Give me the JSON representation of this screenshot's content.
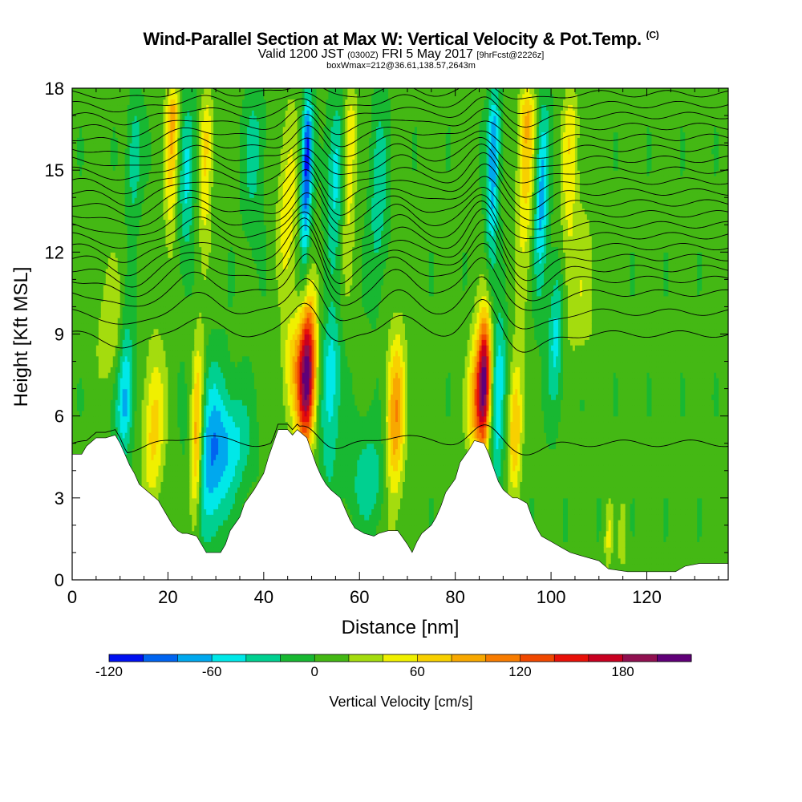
{
  "header": {
    "title": "Wind-Parallel Section at Max W: Vertical Velocity & Pot.Temp.",
    "title_tag": "(C)",
    "valid_prefix": "Valid 1200 JST",
    "valid_utc": "(0300Z)",
    "valid_date": "FRI 5 May 2017",
    "forecast": "[9hrFcst@2226z]",
    "box_info": "boxWmax=212@36.61,138.57,2643m"
  },
  "chart_data": {
    "type": "heatmap",
    "xlabel": "Distance [nm]",
    "ylabel": "Height [Kft MSL]",
    "xlim": [
      0,
      137
    ],
    "ylim": [
      0,
      18
    ],
    "x_ticks": [
      0,
      20,
      40,
      60,
      80,
      100,
      120
    ],
    "y_ticks": [
      0,
      3,
      6,
      9,
      12,
      15,
      18
    ],
    "colorbar": {
      "title": "Vertical Velocity [cm/s]",
      "range": [
        -120,
        220
      ],
      "step": 20,
      "tick_labels": [
        "-120",
        "-60",
        "0",
        "60",
        "120",
        "180"
      ],
      "tick_values": [
        -120,
        -60,
        0,
        60,
        120,
        180
      ],
      "colors": [
        "#0010f0",
        "#0064f0",
        "#00a8ee",
        "#00e8e8",
        "#00d090",
        "#18b832",
        "#44b814",
        "#a4dc0e",
        "#f0f000",
        "#f8d000",
        "#f8a800",
        "#f87c00",
        "#f04800",
        "#e81008",
        "#c80020",
        "#901050",
        "#600078"
      ]
    },
    "background_w": 5,
    "terrain": [
      [
        0,
        4.6
      ],
      [
        2,
        4.6
      ],
      [
        3,
        4.9
      ],
      [
        5,
        5.2
      ],
      [
        7,
        5.2
      ],
      [
        9,
        5.3
      ],
      [
        10,
        5.0
      ],
      [
        11,
        4.6
      ],
      [
        12,
        4.2
      ],
      [
        13,
        3.9
      ],
      [
        14,
        3.5
      ],
      [
        16,
        3.2
      ],
      [
        18,
        2.9
      ],
      [
        19,
        2.6
      ],
      [
        20,
        2.3
      ],
      [
        21,
        2.0
      ],
      [
        22,
        1.8
      ],
      [
        23,
        1.7
      ],
      [
        24,
        1.7
      ],
      [
        26,
        1.6
      ],
      [
        27,
        1.3
      ],
      [
        28,
        1.0
      ],
      [
        31,
        1.0
      ],
      [
        32,
        1.3
      ],
      [
        33,
        1.8
      ],
      [
        35,
        2.3
      ],
      [
        36,
        2.8
      ],
      [
        38,
        3.3
      ],
      [
        40,
        3.9
      ],
      [
        41,
        4.5
      ],
      [
        42,
        5.0
      ],
      [
        43,
        5.5
      ],
      [
        45,
        5.5
      ],
      [
        46,
        5.3
      ],
      [
        47,
        5.5
      ],
      [
        49,
        5.2
      ],
      [
        50,
        4.7
      ],
      [
        51,
        4.2
      ],
      [
        52,
        3.8
      ],
      [
        53,
        3.5
      ],
      [
        54,
        3.3
      ],
      [
        56,
        3.0
      ],
      [
        57,
        2.6
      ],
      [
        58,
        2.2
      ],
      [
        59,
        1.9
      ],
      [
        61,
        1.7
      ],
      [
        63,
        1.6
      ],
      [
        64,
        1.7
      ],
      [
        66,
        1.8
      ],
      [
        68,
        1.8
      ],
      [
        70,
        1.3
      ],
      [
        71,
        1.0
      ],
      [
        72,
        1.4
      ],
      [
        73,
        1.7
      ],
      [
        75,
        2.0
      ],
      [
        76,
        2.3
      ],
      [
        77,
        2.7
      ],
      [
        78,
        3.2
      ],
      [
        80,
        3.7
      ],
      [
        81,
        4.3
      ],
      [
        83,
        4.8
      ],
      [
        84,
        5.1
      ],
      [
        86,
        5.0
      ],
      [
        87,
        4.6
      ],
      [
        88,
        4.1
      ],
      [
        89,
        3.6
      ],
      [
        90,
        3.3
      ],
      [
        92,
        3.0
      ],
      [
        93,
        3.0
      ],
      [
        95,
        2.8
      ],
      [
        96,
        2.3
      ],
      [
        97,
        1.9
      ],
      [
        98,
        1.6
      ],
      [
        100,
        1.4
      ],
      [
        102,
        1.2
      ],
      [
        104,
        1.0
      ],
      [
        106,
        0.9
      ],
      [
        108,
        0.8
      ],
      [
        110,
        0.7
      ],
      [
        112,
        0.4
      ],
      [
        116,
        0.3
      ],
      [
        120,
        0.3
      ],
      [
        126,
        0.3
      ],
      [
        128,
        0.5
      ],
      [
        131,
        0.6
      ],
      [
        137,
        0.6
      ]
    ],
    "updrafts": [
      {
        "x": 49,
        "w": 212,
        "width": 1.3,
        "z0": 4.5,
        "z1": 10.5,
        "zc": 7.5
      },
      {
        "x": 86,
        "w": 200,
        "width": 1.0,
        "z0": 4.5,
        "z1": 10.0,
        "zc": 7.2
      },
      {
        "x": 67.5,
        "w": 95,
        "width": 1.4,
        "z0": 2.0,
        "z1": 9.5,
        "zc": 6.0
      },
      {
        "x": 84,
        "w": 75,
        "width": 1.2,
        "z0": 4.5,
        "z1": 9.5,
        "zc": 6.5
      },
      {
        "x": 26,
        "w": 110,
        "width": 0.9,
        "z0": 1.5,
        "z1": 9.0,
        "zc": 5.0
      },
      {
        "x": 17,
        "w": 65,
        "width": 1.6,
        "z0": 2.5,
        "z1": 9.0,
        "zc": 5.5
      },
      {
        "x": 92.5,
        "w": 80,
        "width": 1.0,
        "z0": 3.0,
        "z1": 8.5,
        "zc": 5.5
      },
      {
        "x": 46,
        "w": 55,
        "width": 1.5,
        "z0": 5.5,
        "z1": 10.0,
        "zc": 8.0
      },
      {
        "x": 58,
        "w": 60,
        "width": 1.0,
        "z0": 10.5,
        "z1": 18,
        "zc": 16.5
      },
      {
        "x": 45,
        "w": 50,
        "width": 1.5,
        "z0": 10.0,
        "z1": 18,
        "zc": 13.5
      },
      {
        "x": 21,
        "w": 85,
        "width": 1.0,
        "z0": 12.0,
        "z1": 18,
        "zc": 17.0
      },
      {
        "x": 28,
        "w": 60,
        "width": 1.0,
        "z0": 11.0,
        "z1": 18,
        "zc": 16.0
      },
      {
        "x": 95,
        "w": 75,
        "width": 1.3,
        "z0": 10.0,
        "z1": 18,
        "zc": 17.0
      },
      {
        "x": 104,
        "w": 50,
        "width": 1.2,
        "z0": 10.5,
        "z1": 18,
        "zc": 16.5
      },
      {
        "x": 8,
        "w": 35,
        "width": 2.0,
        "z0": 7.0,
        "z1": 12.0,
        "zc": 9.0
      },
      {
        "x": 106,
        "w": 30,
        "width": 2.5,
        "z0": 8.0,
        "z1": 15.0,
        "zc": 10.0
      },
      {
        "x": 112,
        "w": 40,
        "width": 0.6,
        "z0": 0.5,
        "z1": 3.0,
        "zc": 1.5
      },
      {
        "x": 115,
        "w": 35,
        "width": 0.6,
        "z0": 0.5,
        "z1": 3.0,
        "zc": 1.5
      }
    ],
    "downdrafts": [
      {
        "x": 11,
        "w": -75,
        "width": 1.2,
        "z0": 4.5,
        "z1": 10.0,
        "zc": 6.5
      },
      {
        "x": 29,
        "w": -80,
        "width": 2.5,
        "z0": 1.0,
        "z1": 8.0,
        "zc": 4.5
      },
      {
        "x": 34,
        "w": -45,
        "width": 2.5,
        "z0": 3.0,
        "z1": 7.0,
        "zc": 5.0
      },
      {
        "x": 54,
        "w": -60,
        "width": 1.5,
        "z0": 3.0,
        "z1": 10.0,
        "zc": 7.5
      },
      {
        "x": 62,
        "w": -40,
        "width": 3.0,
        "z0": 2.0,
        "z1": 6.0,
        "zc": 3.5
      },
      {
        "x": 89,
        "w": -70,
        "width": 1.0,
        "z0": 3.0,
        "z1": 10.0,
        "zc": 7.0
      },
      {
        "x": 49,
        "w": -115,
        "width": 0.8,
        "z0": 11.0,
        "z1": 18,
        "zc": 15.5
      },
      {
        "x": 88,
        "w": -90,
        "width": 0.9,
        "z0": 11.0,
        "z1": 18,
        "zc": 16.0
      },
      {
        "x": 98,
        "w": -75,
        "width": 1.0,
        "z0": 10.0,
        "z1": 18,
        "zc": 14.0
      },
      {
        "x": 55,
        "w": -55,
        "width": 1.3,
        "z0": 11.0,
        "z1": 18,
        "zc": 15.0
      },
      {
        "x": 24,
        "w": -50,
        "width": 1.2,
        "z0": 11.0,
        "z1": 18,
        "zc": 15.0
      },
      {
        "x": 13,
        "w": -45,
        "width": 1.0,
        "z0": 13.0,
        "z1": 18,
        "zc": 15.5
      },
      {
        "x": 38,
        "w": -35,
        "width": 1.5,
        "z0": 12.0,
        "z1": 18,
        "zc": 16.0
      },
      {
        "x": 64,
        "w": -40,
        "width": 1.3,
        "z0": 10.0,
        "z1": 18,
        "zc": 14.0
      },
      {
        "x": 101,
        "w": -55,
        "width": 1.2,
        "z0": 6.0,
        "z1": 12.0,
        "zc": 9.0
      }
    ],
    "theta_contours": {
      "base_heights": [
        5.0,
        9.0,
        9.8,
        10.5,
        11.0,
        11.4,
        11.8,
        12.2,
        12.6,
        13.0,
        13.4,
        13.8,
        14.2,
        14.6,
        15.0,
        15.4,
        15.8,
        16.2,
        16.6,
        17.0,
        17.4,
        17.8
      ],
      "waves": [
        {
          "x": 49,
          "amp": 1.6,
          "width": 3.0
        },
        {
          "x": 86,
          "amp": 1.5,
          "width": 3.0
        },
        {
          "x": 68,
          "amp": 0.8,
          "width": 3.5
        },
        {
          "x": 26,
          "amp": 0.7,
          "width": 4.0
        },
        {
          "x": 95,
          "amp": -0.8,
          "width": 4.0
        },
        {
          "x": 55,
          "amp": -0.6,
          "width": 3.0
        },
        {
          "x": 12,
          "amp": -0.6,
          "width": 4.0
        }
      ]
    }
  }
}
